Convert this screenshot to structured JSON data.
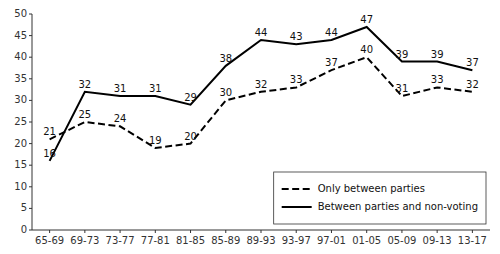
{
  "chart_data": {
    "type": "line",
    "categories": [
      "65-69",
      "69-73",
      "73-77",
      "77-81",
      "81-85",
      "85-89",
      "89-93",
      "93-97",
      "97-01",
      "01-05",
      "05-09",
      "09-13",
      "13-17"
    ],
    "series": [
      {
        "name": "Between parties and non-voting",
        "color": "#000000",
        "line_style": "solid",
        "values": [
          16,
          32,
          31,
          31,
          29,
          38,
          44,
          43,
          44,
          47,
          39,
          39,
          37
        ]
      },
      {
        "name": "Only between parties",
        "color": "#000000",
        "line_style": "dashed",
        "values": [
          21,
          25,
          24,
          19,
          20,
          30,
          32,
          33,
          37,
          40,
          31,
          33,
          32
        ]
      }
    ],
    "ylim": [
      0,
      50
    ],
    "yticks": [
      0,
      5,
      10,
      15,
      20,
      25,
      30,
      35,
      40,
      45,
      50
    ],
    "grid": false,
    "legend": "lower right",
    "data_labels": true
  }
}
